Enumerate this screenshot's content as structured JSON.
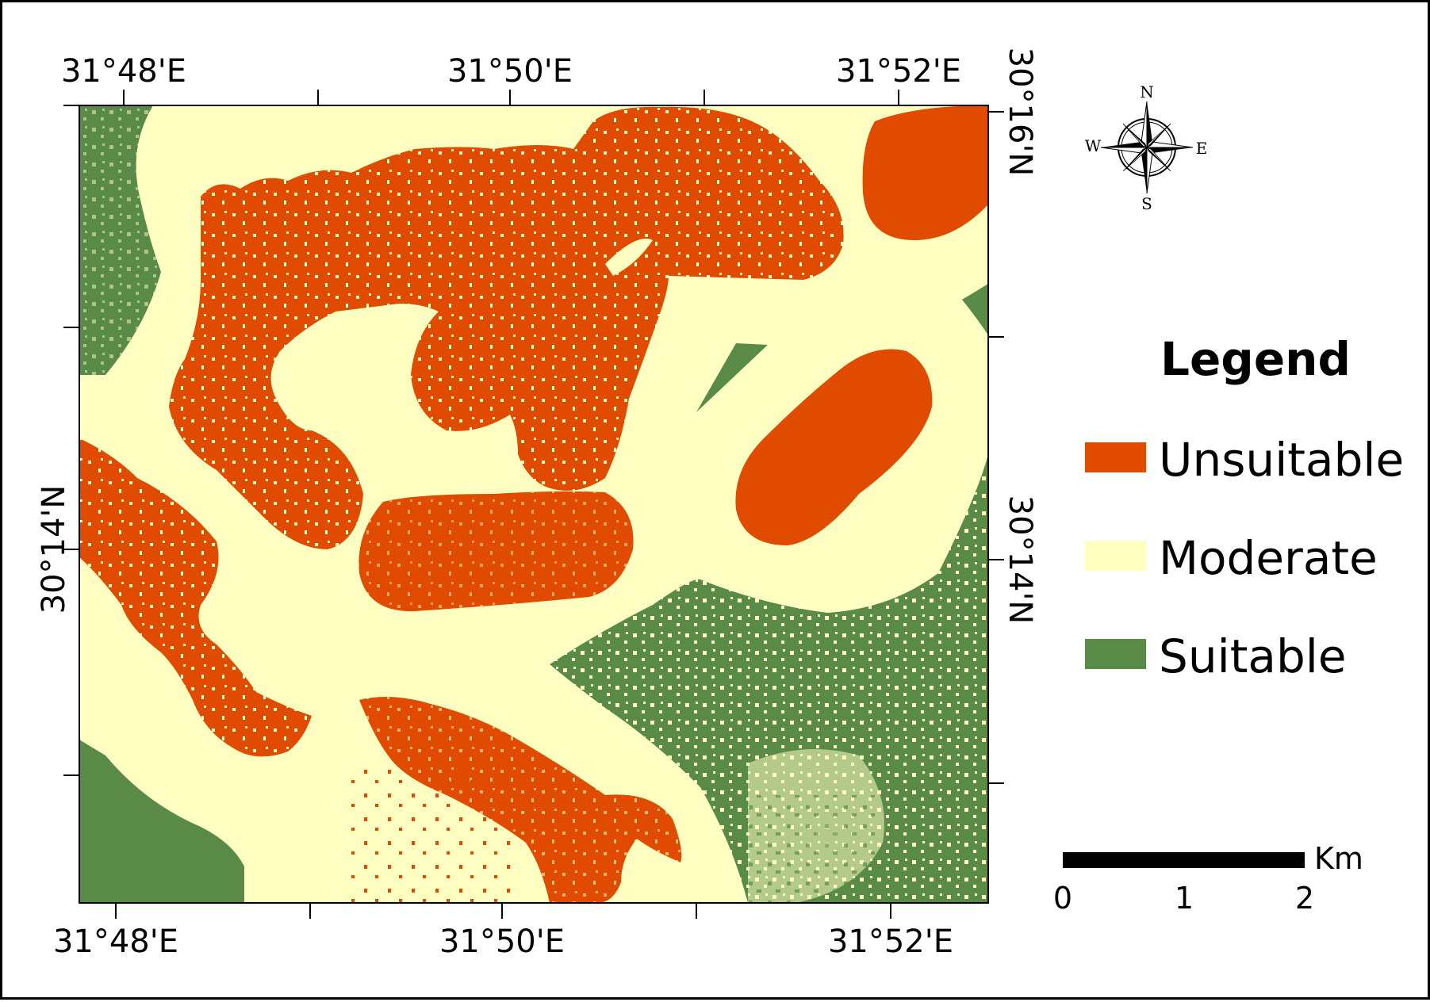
{
  "map": {
    "top_ticks": [
      "31°48'E",
      "31°50'E",
      "31°52'E"
    ],
    "bottom_ticks": [
      "31°48'E",
      "31°50'E",
      "31°52'E"
    ],
    "left_ticks": [
      "30°14'N"
    ],
    "right_ticks": [
      "30°16'N",
      "30°14'N"
    ]
  },
  "legend": {
    "title": "Legend",
    "items": [
      {
        "label": "Unsuitable",
        "color": "#E04B00"
      },
      {
        "label": "Moderate",
        "color": "#FFFFC2"
      },
      {
        "label": "Suitable",
        "color": "#5A8A47"
      }
    ]
  },
  "compass": {
    "n": "N",
    "s": "S",
    "e": "E",
    "w": "W"
  },
  "scale_bar": {
    "unit": "Km",
    "labels": [
      "0",
      "1",
      "2"
    ]
  }
}
